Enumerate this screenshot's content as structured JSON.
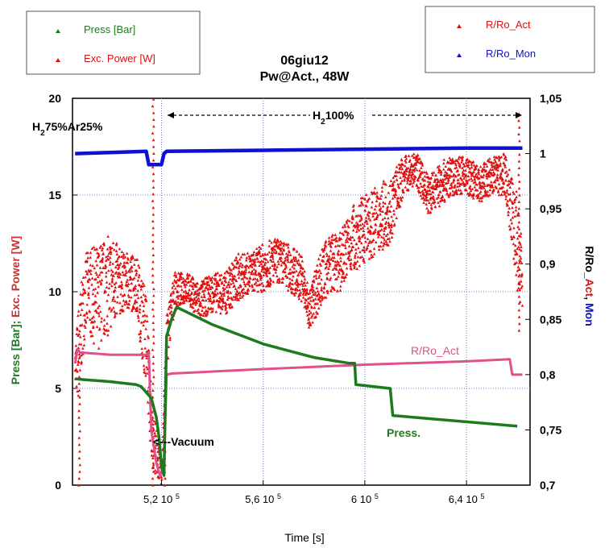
{
  "chart_data": {
    "type": "scatter",
    "title": "06giu12",
    "subtitle": "Pw@Act., 48W",
    "xlabel": "Time [s]",
    "ylabel_left": "Press [Bar]; Exc. Power [W]",
    "ylabel_left_parts": [
      "Press [Bar]",
      "; ",
      "Exc. Power [W]"
    ],
    "ylabel_right_parts": [
      "R/Ro_",
      "Act",
      ", ",
      "Mon"
    ],
    "xlim": [
      485000,
      665000
    ],
    "ylim_left": [
      0,
      20
    ],
    "ylim_right": [
      0.7,
      1.05
    ],
    "x_ticks": [
      {
        "value": 520000,
        "label": "5,2 10",
        "exp": "5"
      },
      {
        "value": 560000,
        "label": "5,6 10",
        "exp": "5"
      },
      {
        "value": 600000,
        "label": "6 10",
        "exp": "5"
      },
      {
        "value": 640000,
        "label": "6,4 10",
        "exp": "5"
      }
    ],
    "y_left_ticks": [
      {
        "value": 0,
        "label": "0"
      },
      {
        "value": 5,
        "label": "5"
      },
      {
        "value": 10,
        "label": "10"
      },
      {
        "value": 15,
        "label": "15"
      },
      {
        "value": 20,
        "label": "20"
      }
    ],
    "y_right_ticks": [
      {
        "value": 0.7,
        "label": "0,7"
      },
      {
        "value": 0.75,
        "label": "0,75"
      },
      {
        "value": 0.8,
        "label": "0,8"
      },
      {
        "value": 0.85,
        "label": "0,85"
      },
      {
        "value": 0.9,
        "label": "0,9"
      },
      {
        "value": 0.95,
        "label": "0,95"
      },
      {
        "value": 1,
        "label": "1"
      },
      {
        "value": 1.05,
        "label": "1,05"
      }
    ],
    "legend_left": [
      {
        "name": "Press [Bar]",
        "color": "#1e7a1e"
      },
      {
        "name": "Exc. Power [W]",
        "color": "#e01010"
      }
    ],
    "legend_right": [
      {
        "name": "R/Ro_Act",
        "color": "#e01010"
      },
      {
        "name": "R/Ro_Mon",
        "color": "#1010d0"
      }
    ],
    "annotations": {
      "h2ar": {
        "parts": [
          "H",
          "2",
          "75%Ar25%"
        ]
      },
      "h2": {
        "parts": [
          "H",
          "2",
          "100%"
        ]
      },
      "vacuum": "<---Vacuum",
      "rro_act": "R/Ro_Act",
      "press": "Press."
    },
    "series": [
      {
        "name": "Press [Bar]",
        "axis": "left",
        "color": "#1e7a1e",
        "points": [
          [
            486000,
            5.5
          ],
          [
            490000,
            5.45
          ],
          [
            500000,
            5.35
          ],
          [
            510000,
            5.2
          ],
          [
            512000,
            5.1
          ],
          [
            514000,
            4.8
          ],
          [
            516000,
            4.5
          ],
          [
            518000,
            3.5
          ],
          [
            519000,
            2.5
          ],
          [
            520000,
            1
          ],
          [
            521000,
            0.5
          ],
          [
            522000,
            7.7
          ],
          [
            524000,
            8.6
          ],
          [
            526000,
            9.2
          ],
          [
            540000,
            8.3
          ],
          [
            560000,
            7.3
          ],
          [
            580000,
            6.6
          ],
          [
            594000,
            6.3
          ],
          [
            596000,
            6.3
          ],
          [
            596500,
            5.2
          ],
          [
            610000,
            5.0
          ],
          [
            611000,
            3.6
          ],
          [
            660000,
            3.05
          ]
        ]
      },
      {
        "name": "R/Ro_Mon",
        "axis": "right",
        "color": "#1010d0",
        "points": [
          [
            486000,
            1.0
          ],
          [
            500000,
            1.001
          ],
          [
            514000,
            1.002
          ],
          [
            515000,
            0.99
          ],
          [
            520000,
            0.99
          ],
          [
            521000,
            1.0
          ],
          [
            522000,
            1.002
          ],
          [
            560000,
            1.003
          ],
          [
            600000,
            1.004
          ],
          [
            640000,
            1.005
          ],
          [
            662000,
            1.005
          ]
        ]
      },
      {
        "name": "R/Ro_Act",
        "axis": "right",
        "color": "#e0508c",
        "points": [
          [
            486000,
            0.81
          ],
          [
            487000,
            0.823
          ],
          [
            488000,
            0.82
          ],
          [
            500000,
            0.818
          ],
          [
            514000,
            0.818
          ],
          [
            515000,
            0.82
          ],
          [
            516000,
            0.75
          ],
          [
            518000,
            0.72
          ],
          [
            519500,
            0.708
          ],
          [
            521000,
            0.72
          ],
          [
            522000,
            0.8
          ],
          [
            524000,
            0.801
          ],
          [
            560000,
            0.805
          ],
          [
            600000,
            0.809
          ],
          [
            640000,
            0.812
          ],
          [
            657000,
            0.814
          ],
          [
            658000,
            0.8
          ],
          [
            662000,
            0.8
          ]
        ]
      },
      {
        "name": "Exc. Power [W]",
        "axis": "left",
        "color": "#e01010",
        "envelope": [
          [
            486000,
            5.5,
            7
          ],
          [
            487000,
            4,
            9
          ],
          [
            490000,
            8,
            12
          ],
          [
            495000,
            7,
            12.5
          ],
          [
            500000,
            8,
            13
          ],
          [
            505000,
            9,
            12
          ],
          [
            510000,
            9,
            12
          ],
          [
            514000,
            5,
            10
          ],
          [
            516000,
            1,
            5
          ],
          [
            520000,
            0,
            1
          ],
          [
            522000,
            6,
            9
          ],
          [
            525000,
            9,
            11
          ],
          [
            530000,
            9.5,
            11
          ],
          [
            535000,
            8.5,
            10.5
          ],
          [
            540000,
            9,
            11
          ],
          [
            545000,
            8.8,
            11
          ],
          [
            550000,
            9.5,
            12
          ],
          [
            555000,
            10,
            12
          ],
          [
            560000,
            10,
            12.5
          ],
          [
            565000,
            10.5,
            12.8
          ],
          [
            570000,
            10,
            12.5
          ],
          [
            575000,
            9.5,
            12
          ],
          [
            578000,
            8,
            10
          ],
          [
            582000,
            9,
            12
          ],
          [
            586000,
            10,
            13
          ],
          [
            590000,
            10,
            13
          ],
          [
            595000,
            11,
            14.5
          ],
          [
            600000,
            11.5,
            15
          ],
          [
            605000,
            12,
            15.5
          ],
          [
            610000,
            12.5,
            16
          ],
          [
            615000,
            15,
            17
          ],
          [
            620000,
            15.5,
            17.3
          ],
          [
            625000,
            14,
            16
          ],
          [
            630000,
            14.5,
            16.8
          ],
          [
            635000,
            15,
            17
          ],
          [
            640000,
            15,
            17
          ],
          [
            645000,
            14.5,
            16.5
          ],
          [
            650000,
            15,
            17
          ],
          [
            655000,
            15,
            17.3
          ],
          [
            658000,
            12,
            16
          ],
          [
            660000,
            10,
            15
          ],
          [
            662000,
            8,
            12
          ]
        ]
      }
    ]
  }
}
